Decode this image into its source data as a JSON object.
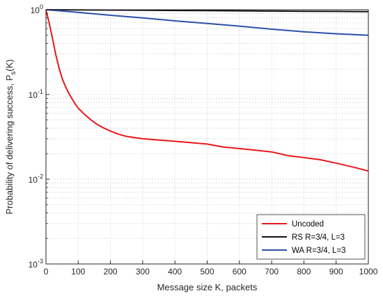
{
  "chart_data": {
    "type": "line",
    "xlabel": "Message size K, packets",
    "ylabel_main": "Probability of delivering success, P",
    "ylabel_sub": "s",
    "ylabel_tail": "(K)",
    "xlim": [
      0,
      1000
    ],
    "ylim": [
      0.001,
      1
    ],
    "yscale": "log",
    "grid": true,
    "legend_position": "bottom-right",
    "x_ticks": [
      0,
      100,
      200,
      300,
      400,
      500,
      600,
      700,
      800,
      900,
      1000
    ],
    "x_tick_labels": [
      "0",
      "100",
      "200",
      "300",
      "400",
      "500",
      "600",
      "700",
      "800",
      "900",
      "1000"
    ],
    "y_ticks": [
      {
        "value": 1,
        "base": "10",
        "exp": "0"
      },
      {
        "value": 0.1,
        "base": "10",
        "exp": "-1"
      },
      {
        "value": 0.01,
        "base": "10",
        "exp": "-2"
      },
      {
        "value": 0.001,
        "base": "10",
        "exp": "-3"
      }
    ],
    "series": [
      {
        "name": "Uncoded",
        "color": "#e8161b",
        "x": [
          0,
          10,
          20,
          30,
          40,
          50,
          60,
          70,
          80,
          90,
          100,
          120,
          140,
          160,
          180,
          200,
          225,
          250,
          300,
          350,
          400,
          450,
          500,
          550,
          600,
          650,
          700,
          750,
          800,
          850,
          900,
          950,
          1000
        ],
        "y": [
          1.0,
          0.7,
          0.46,
          0.3,
          0.21,
          0.155,
          0.125,
          0.105,
          0.09,
          0.078,
          0.069,
          0.058,
          0.05,
          0.044,
          0.04,
          0.037,
          0.034,
          0.032,
          0.03,
          0.029,
          0.028,
          0.027,
          0.026,
          0.024,
          0.023,
          0.022,
          0.021,
          0.019,
          0.018,
          0.017,
          0.0155,
          0.014,
          0.0125
        ]
      },
      {
        "name": "RS R=3/4, L=3",
        "color": "#111111",
        "x": [
          0,
          100,
          200,
          300,
          400,
          500,
          600,
          700,
          800,
          900,
          1000
        ],
        "y": [
          1.0,
          0.995,
          0.99,
          0.985,
          0.98,
          0.975,
          0.97,
          0.965,
          0.96,
          0.955,
          0.95
        ]
      },
      {
        "name": "WA R=3/4, L=3",
        "color": "#2b4faa",
        "x": [
          0,
          100,
          200,
          300,
          400,
          500,
          600,
          700,
          800,
          900,
          1000
        ],
        "y": [
          1.0,
          0.93,
          0.86,
          0.8,
          0.74,
          0.69,
          0.64,
          0.59,
          0.55,
          0.52,
          0.5
        ]
      }
    ]
  }
}
